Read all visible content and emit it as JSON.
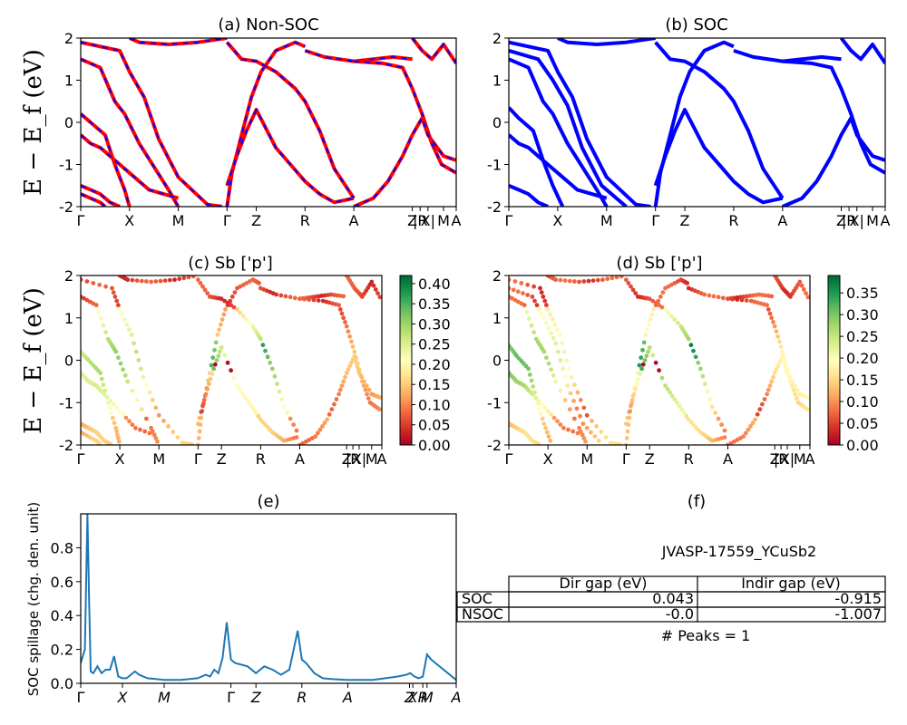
{
  "shared_ylabel": "E − E_f (eV)",
  "kpath_labels": [
    "Γ",
    "X",
    "M",
    "Γ",
    "Z",
    "R",
    "A",
    "Z",
    "|R",
    "X|",
    "M",
    "A"
  ],
  "kpath_positions": [
    0,
    0.5,
    1.0,
    1.5,
    1.8,
    2.3,
    2.8,
    3.4,
    3.48,
    3.56,
    3.72,
    3.85
  ],
  "chart_data": [
    {
      "id": "a",
      "type": "line",
      "title": "(a) Non-SOC",
      "ylim": [
        -2,
        2
      ],
      "yticks": [
        -2,
        -1,
        0,
        1,
        2
      ],
      "colors": [
        "#ff0000",
        "#0000ff"
      ],
      "style": "red solid with blue dashed overlay",
      "bands": [
        [
          [
            0,
            1.9
          ],
          [
            0.4,
            1.7
          ],
          [
            0.5,
            1.2
          ],
          [
            0.65,
            0.6
          ],
          [
            0.8,
            -0.4
          ],
          [
            1.0,
            -1.3
          ],
          [
            1.3,
            -1.95
          ],
          [
            1.45,
            -2.0
          ]
        ],
        [
          [
            0,
            1.5
          ],
          [
            0.2,
            1.3
          ],
          [
            0.35,
            0.5
          ],
          [
            0.45,
            0.2
          ],
          [
            0.6,
            -0.5
          ],
          [
            0.9,
            -1.6
          ],
          [
            1.0,
            -2.0
          ]
        ],
        [
          [
            0,
            0.2
          ],
          [
            0.1,
            0.0
          ],
          [
            0.25,
            -0.3
          ],
          [
            0.35,
            -1.0
          ],
          [
            0.45,
            -1.6
          ],
          [
            0.5,
            -2.0
          ]
        ],
        [
          [
            0,
            -0.3
          ],
          [
            0.1,
            -0.5
          ],
          [
            0.2,
            -0.6
          ],
          [
            0.3,
            -0.8
          ],
          [
            0.5,
            -1.2
          ],
          [
            0.7,
            -1.6
          ],
          [
            1.0,
            -1.8
          ]
        ],
        [
          [
            0,
            -1.5
          ],
          [
            0.1,
            -1.6
          ],
          [
            0.2,
            -1.7
          ],
          [
            0.3,
            -1.9
          ],
          [
            0.4,
            -2.0
          ]
        ],
        [
          [
            0,
            -1.7
          ],
          [
            0.2,
            -1.9
          ],
          [
            0.25,
            -2.0
          ]
        ],
        [
          [
            0.5,
            2.0
          ],
          [
            0.6,
            1.9
          ],
          [
            0.9,
            1.85
          ],
          [
            1.2,
            1.9
          ],
          [
            1.5,
            2.0
          ]
        ],
        [
          [
            1.5,
            -2.0
          ],
          [
            1.55,
            -1.2
          ],
          [
            1.65,
            -0.3
          ],
          [
            1.75,
            0.6
          ],
          [
            1.85,
            1.2
          ],
          [
            2.0,
            1.7
          ],
          [
            2.2,
            1.9
          ],
          [
            2.3,
            1.8
          ]
        ],
        [
          [
            1.5,
            -1.5
          ],
          [
            1.6,
            -0.8
          ],
          [
            1.7,
            -0.2
          ],
          [
            1.8,
            0.3
          ],
          [
            2.0,
            -0.6
          ],
          [
            2.15,
            -1.0
          ],
          [
            2.3,
            -1.4
          ],
          [
            2.45,
            -1.7
          ],
          [
            2.6,
            -1.9
          ],
          [
            2.8,
            -1.8
          ]
        ],
        [
          [
            1.5,
            1.9
          ],
          [
            1.65,
            1.5
          ],
          [
            1.8,
            1.45
          ],
          [
            2.0,
            1.2
          ],
          [
            2.2,
            0.8
          ],
          [
            2.3,
            0.5
          ],
          [
            2.45,
            -0.2
          ],
          [
            2.6,
            -1.1
          ],
          [
            2.8,
            -1.8
          ]
        ],
        [
          [
            2.3,
            1.7
          ],
          [
            2.5,
            1.55
          ],
          [
            2.8,
            1.45
          ],
          [
            3.0,
            1.5
          ],
          [
            3.2,
            1.55
          ],
          [
            3.4,
            1.5
          ]
        ],
        [
          [
            2.8,
            1.45
          ],
          [
            3.1,
            1.4
          ],
          [
            3.3,
            1.3
          ],
          [
            3.4,
            0.8
          ],
          [
            3.5,
            0.2
          ],
          [
            3.6,
            -0.5
          ],
          [
            3.7,
            -1.0
          ],
          [
            3.85,
            -1.2
          ]
        ],
        [
          [
            2.8,
            -2.0
          ],
          [
            3.0,
            -1.8
          ],
          [
            3.15,
            -1.4
          ],
          [
            3.3,
            -0.8
          ],
          [
            3.4,
            -0.3
          ],
          [
            3.5,
            0.1
          ],
          [
            3.56,
            -0.3
          ],
          [
            3.72,
            -0.8
          ],
          [
            3.85,
            -0.9
          ]
        ],
        [
          [
            3.4,
            2.0
          ],
          [
            3.5,
            1.7
          ],
          [
            3.6,
            1.5
          ],
          [
            3.72,
            1.85
          ],
          [
            3.85,
            1.4
          ]
        ]
      ]
    },
    {
      "id": "b",
      "type": "line",
      "title": "(b) SOC",
      "ylim": [
        -2,
        2
      ],
      "yticks": [
        -2,
        -1,
        0,
        1,
        2
      ],
      "colors": [
        "#0000ff"
      ],
      "bands": [
        [
          [
            0,
            1.9
          ],
          [
            0.4,
            1.7
          ],
          [
            0.5,
            1.2
          ],
          [
            0.65,
            0.6
          ],
          [
            0.8,
            -0.4
          ],
          [
            1.0,
            -1.3
          ],
          [
            1.3,
            -1.95
          ],
          [
            1.45,
            -2.0
          ]
        ],
        [
          [
            0,
            1.7
          ],
          [
            0.3,
            1.5
          ],
          [
            0.45,
            1.0
          ],
          [
            0.6,
            0.4
          ],
          [
            0.75,
            -0.6
          ],
          [
            0.95,
            -1.5
          ],
          [
            1.2,
            -2.0
          ]
        ],
        [
          [
            0,
            1.5
          ],
          [
            0.2,
            1.3
          ],
          [
            0.35,
            0.5
          ],
          [
            0.45,
            0.2
          ],
          [
            0.6,
            -0.5
          ],
          [
            0.9,
            -1.6
          ],
          [
            1.0,
            -2.0
          ]
        ],
        [
          [
            0,
            0.35
          ],
          [
            0.1,
            0.1
          ],
          [
            0.25,
            -0.2
          ],
          [
            0.35,
            -0.9
          ],
          [
            0.45,
            -1.5
          ],
          [
            0.55,
            -2.0
          ]
        ],
        [
          [
            0,
            -0.3
          ],
          [
            0.1,
            -0.5
          ],
          [
            0.2,
            -0.6
          ],
          [
            0.3,
            -0.8
          ],
          [
            0.5,
            -1.2
          ],
          [
            0.7,
            -1.6
          ],
          [
            1.0,
            -1.8
          ]
        ],
        [
          [
            0,
            -1.5
          ],
          [
            0.1,
            -1.6
          ],
          [
            0.2,
            -1.7
          ],
          [
            0.3,
            -1.9
          ],
          [
            0.4,
            -2.0
          ]
        ],
        [
          [
            0.5,
            2.0
          ],
          [
            0.6,
            1.9
          ],
          [
            0.9,
            1.85
          ],
          [
            1.2,
            1.9
          ],
          [
            1.5,
            2.0
          ]
        ],
        [
          [
            1.5,
            -2.0
          ],
          [
            1.55,
            -1.2
          ],
          [
            1.65,
            -0.3
          ],
          [
            1.75,
            0.6
          ],
          [
            1.85,
            1.2
          ],
          [
            2.0,
            1.7
          ],
          [
            2.2,
            1.9
          ],
          [
            2.3,
            1.8
          ]
        ],
        [
          [
            1.5,
            -1.5
          ],
          [
            1.6,
            -0.8
          ],
          [
            1.7,
            -0.2
          ],
          [
            1.8,
            0.3
          ],
          [
            2.0,
            -0.6
          ],
          [
            2.15,
            -1.0
          ],
          [
            2.3,
            -1.4
          ],
          [
            2.45,
            -1.7
          ],
          [
            2.6,
            -1.9
          ],
          [
            2.8,
            -1.8
          ]
        ],
        [
          [
            1.5,
            1.9
          ],
          [
            1.65,
            1.5
          ],
          [
            1.8,
            1.45
          ],
          [
            2.0,
            1.2
          ],
          [
            2.2,
            0.8
          ],
          [
            2.3,
            0.5
          ],
          [
            2.45,
            -0.2
          ],
          [
            2.6,
            -1.1
          ],
          [
            2.8,
            -1.8
          ]
        ],
        [
          [
            2.3,
            1.7
          ],
          [
            2.5,
            1.55
          ],
          [
            2.8,
            1.45
          ],
          [
            3.0,
            1.5
          ],
          [
            3.2,
            1.55
          ],
          [
            3.4,
            1.5
          ]
        ],
        [
          [
            2.8,
            1.45
          ],
          [
            3.1,
            1.4
          ],
          [
            3.3,
            1.3
          ],
          [
            3.4,
            0.8
          ],
          [
            3.5,
            0.2
          ],
          [
            3.6,
            -0.5
          ],
          [
            3.7,
            -1.0
          ],
          [
            3.85,
            -1.2
          ]
        ],
        [
          [
            2.8,
            -2.0
          ],
          [
            3.0,
            -1.8
          ],
          [
            3.15,
            -1.4
          ],
          [
            3.3,
            -0.8
          ],
          [
            3.4,
            -0.3
          ],
          [
            3.5,
            0.1
          ],
          [
            3.56,
            -0.3
          ],
          [
            3.72,
            -0.8
          ],
          [
            3.85,
            -0.9
          ]
        ],
        [
          [
            3.4,
            2.0
          ],
          [
            3.5,
            1.7
          ],
          [
            3.6,
            1.5
          ],
          [
            3.72,
            1.85
          ],
          [
            3.85,
            1.4
          ]
        ]
      ]
    },
    {
      "id": "c",
      "type": "scatter",
      "title": "(c)  Sb ['p']",
      "ylim": [
        -2,
        2
      ],
      "yticks": [
        -2,
        -1,
        0,
        1,
        2
      ],
      "colormap": "RdYlGn",
      "clim": [
        0.0,
        0.42
      ],
      "colorbar_ticks": [
        "0.00",
        "0.05",
        "0.10",
        "0.15",
        "0.20",
        "0.25",
        "0.30",
        "0.35",
        "0.40"
      ],
      "colorbar_tick_values": [
        0.0,
        0.05,
        0.1,
        0.15,
        0.2,
        0.25,
        0.3,
        0.35,
        0.4
      ]
    },
    {
      "id": "d",
      "type": "scatter",
      "title": "(d) Sb ['p']",
      "ylim": [
        -2,
        2
      ],
      "yticks": [
        -2,
        -1,
        0,
        1,
        2
      ],
      "colormap": "RdYlGn",
      "clim": [
        0.0,
        0.39
      ],
      "colorbar_ticks": [
        "0.00",
        "0.05",
        "0.10",
        "0.15",
        "0.20",
        "0.25",
        "0.30",
        "0.35"
      ],
      "colorbar_tick_values": [
        0.0,
        0.05,
        0.1,
        0.15,
        0.2,
        0.25,
        0.3,
        0.35
      ]
    },
    {
      "id": "e",
      "type": "line",
      "title": "(e)",
      "ylabel": "SOC spillage (chg. den. unit)",
      "ylim": [
        0.0,
        1.0
      ],
      "yticks": [
        0.0,
        0.2,
        0.4,
        0.6,
        0.8
      ],
      "ytick_labels": [
        "0.0",
        "0.2",
        "0.4",
        "0.6",
        "0.8"
      ],
      "xtick_labels": [
        "Γ",
        "X",
        "M",
        "Γ",
        "Z",
        "R",
        "A",
        "Z",
        "X",
        "R",
        "M",
        "A"
      ],
      "xtick_positions": [
        0,
        0.5,
        1.0,
        1.8,
        2.1,
        2.65,
        3.2,
        3.94,
        3.98,
        4.1,
        4.15,
        4.5
      ],
      "color": "#1f77b4",
      "x": [
        0,
        0.05,
        0.08,
        0.1,
        0.12,
        0.15,
        0.2,
        0.25,
        0.3,
        0.35,
        0.4,
        0.45,
        0.5,
        0.55,
        0.6,
        0.65,
        0.7,
        0.8,
        0.9,
        1.0,
        1.2,
        1.4,
        1.5,
        1.55,
        1.6,
        1.65,
        1.7,
        1.75,
        1.8,
        1.85,
        2.0,
        2.1,
        2.2,
        2.3,
        2.4,
        2.5,
        2.6,
        2.65,
        2.7,
        2.8,
        2.9,
        3.0,
        3.2,
        3.5,
        3.8,
        3.9,
        3.95,
        4.0,
        4.05,
        4.1,
        4.15,
        4.2,
        4.5
      ],
      "y": [
        0.12,
        0.2,
        1.0,
        0.5,
        0.07,
        0.06,
        0.1,
        0.06,
        0.08,
        0.08,
        0.16,
        0.04,
        0.03,
        0.03,
        0.05,
        0.07,
        0.05,
        0.03,
        0.025,
        0.02,
        0.02,
        0.03,
        0.05,
        0.04,
        0.08,
        0.06,
        0.15,
        0.36,
        0.14,
        0.12,
        0.1,
        0.06,
        0.1,
        0.08,
        0.05,
        0.08,
        0.31,
        0.14,
        0.12,
        0.06,
        0.03,
        0.025,
        0.02,
        0.02,
        0.04,
        0.05,
        0.06,
        0.04,
        0.03,
        0.04,
        0.17,
        0.14,
        0.02
      ]
    }
  ],
  "panel_f": {
    "title": "(f)",
    "material": "JVASP-17559_YCuSb2",
    "headers": [
      "Dir gap (eV)",
      "Indir gap (eV)"
    ],
    "rows": [
      {
        "label": "SOC",
        "dir": "0.043",
        "indir": "-0.915"
      },
      {
        "label": "NSOC",
        "dir": "-0.0",
        "indir": "-1.007"
      }
    ],
    "peaks_text": "# Peaks = 1"
  }
}
